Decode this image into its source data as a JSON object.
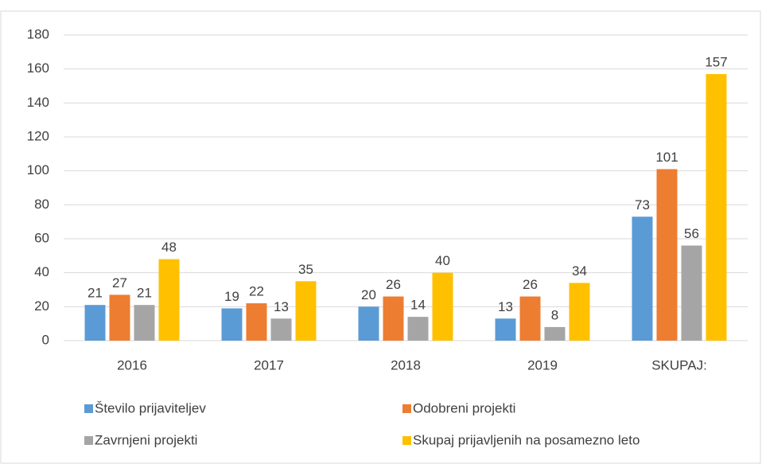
{
  "chart_data": {
    "type": "bar",
    "categories": [
      "2016",
      "2017",
      "2018",
      "2019",
      "SKUPAJ:"
    ],
    "series": [
      {
        "name": "Število prijaviteljev",
        "color": "#5b9bd5",
        "values": [
          21,
          19,
          20,
          13,
          73
        ]
      },
      {
        "name": "Odobreni projekti",
        "color": "#ed7d31",
        "values": [
          27,
          22,
          26,
          26,
          101
        ]
      },
      {
        "name": "Zavrnjeni projekti",
        "color": "#a5a5a5",
        "values": [
          21,
          13,
          14,
          8,
          56
        ]
      },
      {
        "name": "Skupaj prijavljenih na posamezno leto",
        "color": "#ffc000",
        "values": [
          48,
          35,
          40,
          34,
          157
        ]
      }
    ],
    "ylim": [
      0,
      180
    ],
    "yticks": [
      0,
      20,
      40,
      60,
      80,
      100,
      120,
      140,
      160,
      180
    ],
    "grid": true,
    "legend": "bottom"
  }
}
